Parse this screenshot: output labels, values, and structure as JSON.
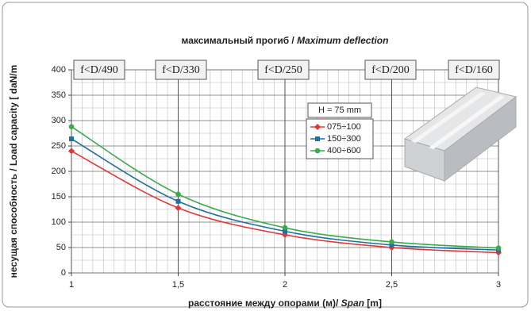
{
  "chart_data": {
    "type": "line",
    "title": "максимальный прогиб / ",
    "title_italic": "Maximum deflection",
    "x_label": "расстояние между опорами (м)/ ",
    "x_label_italic": "Span",
    "x_label_unit": " [m]",
    "y_label": "несущая способность / Load capacity [ daN/m",
    "x": [
      1,
      1.5,
      2,
      2.5,
      3
    ],
    "xlim": [
      1,
      3
    ],
    "xticks": [
      1,
      {
        "value": 1.5,
        "label": "1,5"
      },
      2,
      {
        "value": 2.5,
        "label": "2,5"
      },
      3
    ],
    "ylim": [
      0,
      400
    ],
    "yticks": [
      0,
      50,
      100,
      150,
      200,
      250,
      300,
      350,
      400
    ],
    "grid": true,
    "legend_title": "H = 75 mm",
    "annotations": [
      "f<D/490",
      "f<D/330",
      "f<D/250",
      "f<D/200",
      "f<D/160"
    ],
    "series": [
      {
        "name": "075÷100",
        "color": "#e0383a",
        "marker": "diamond",
        "values": [
          240,
          128,
          75,
          50,
          40
        ]
      },
      {
        "name": "150÷300",
        "color": "#1f6f9f",
        "marker": "square",
        "values": [
          264,
          141,
          82,
          55,
          45
        ]
      },
      {
        "name": "400÷600",
        "color": "#3aaa4a",
        "marker": "circle",
        "values": [
          288,
          155,
          89,
          61,
          49
        ]
      }
    ]
  }
}
